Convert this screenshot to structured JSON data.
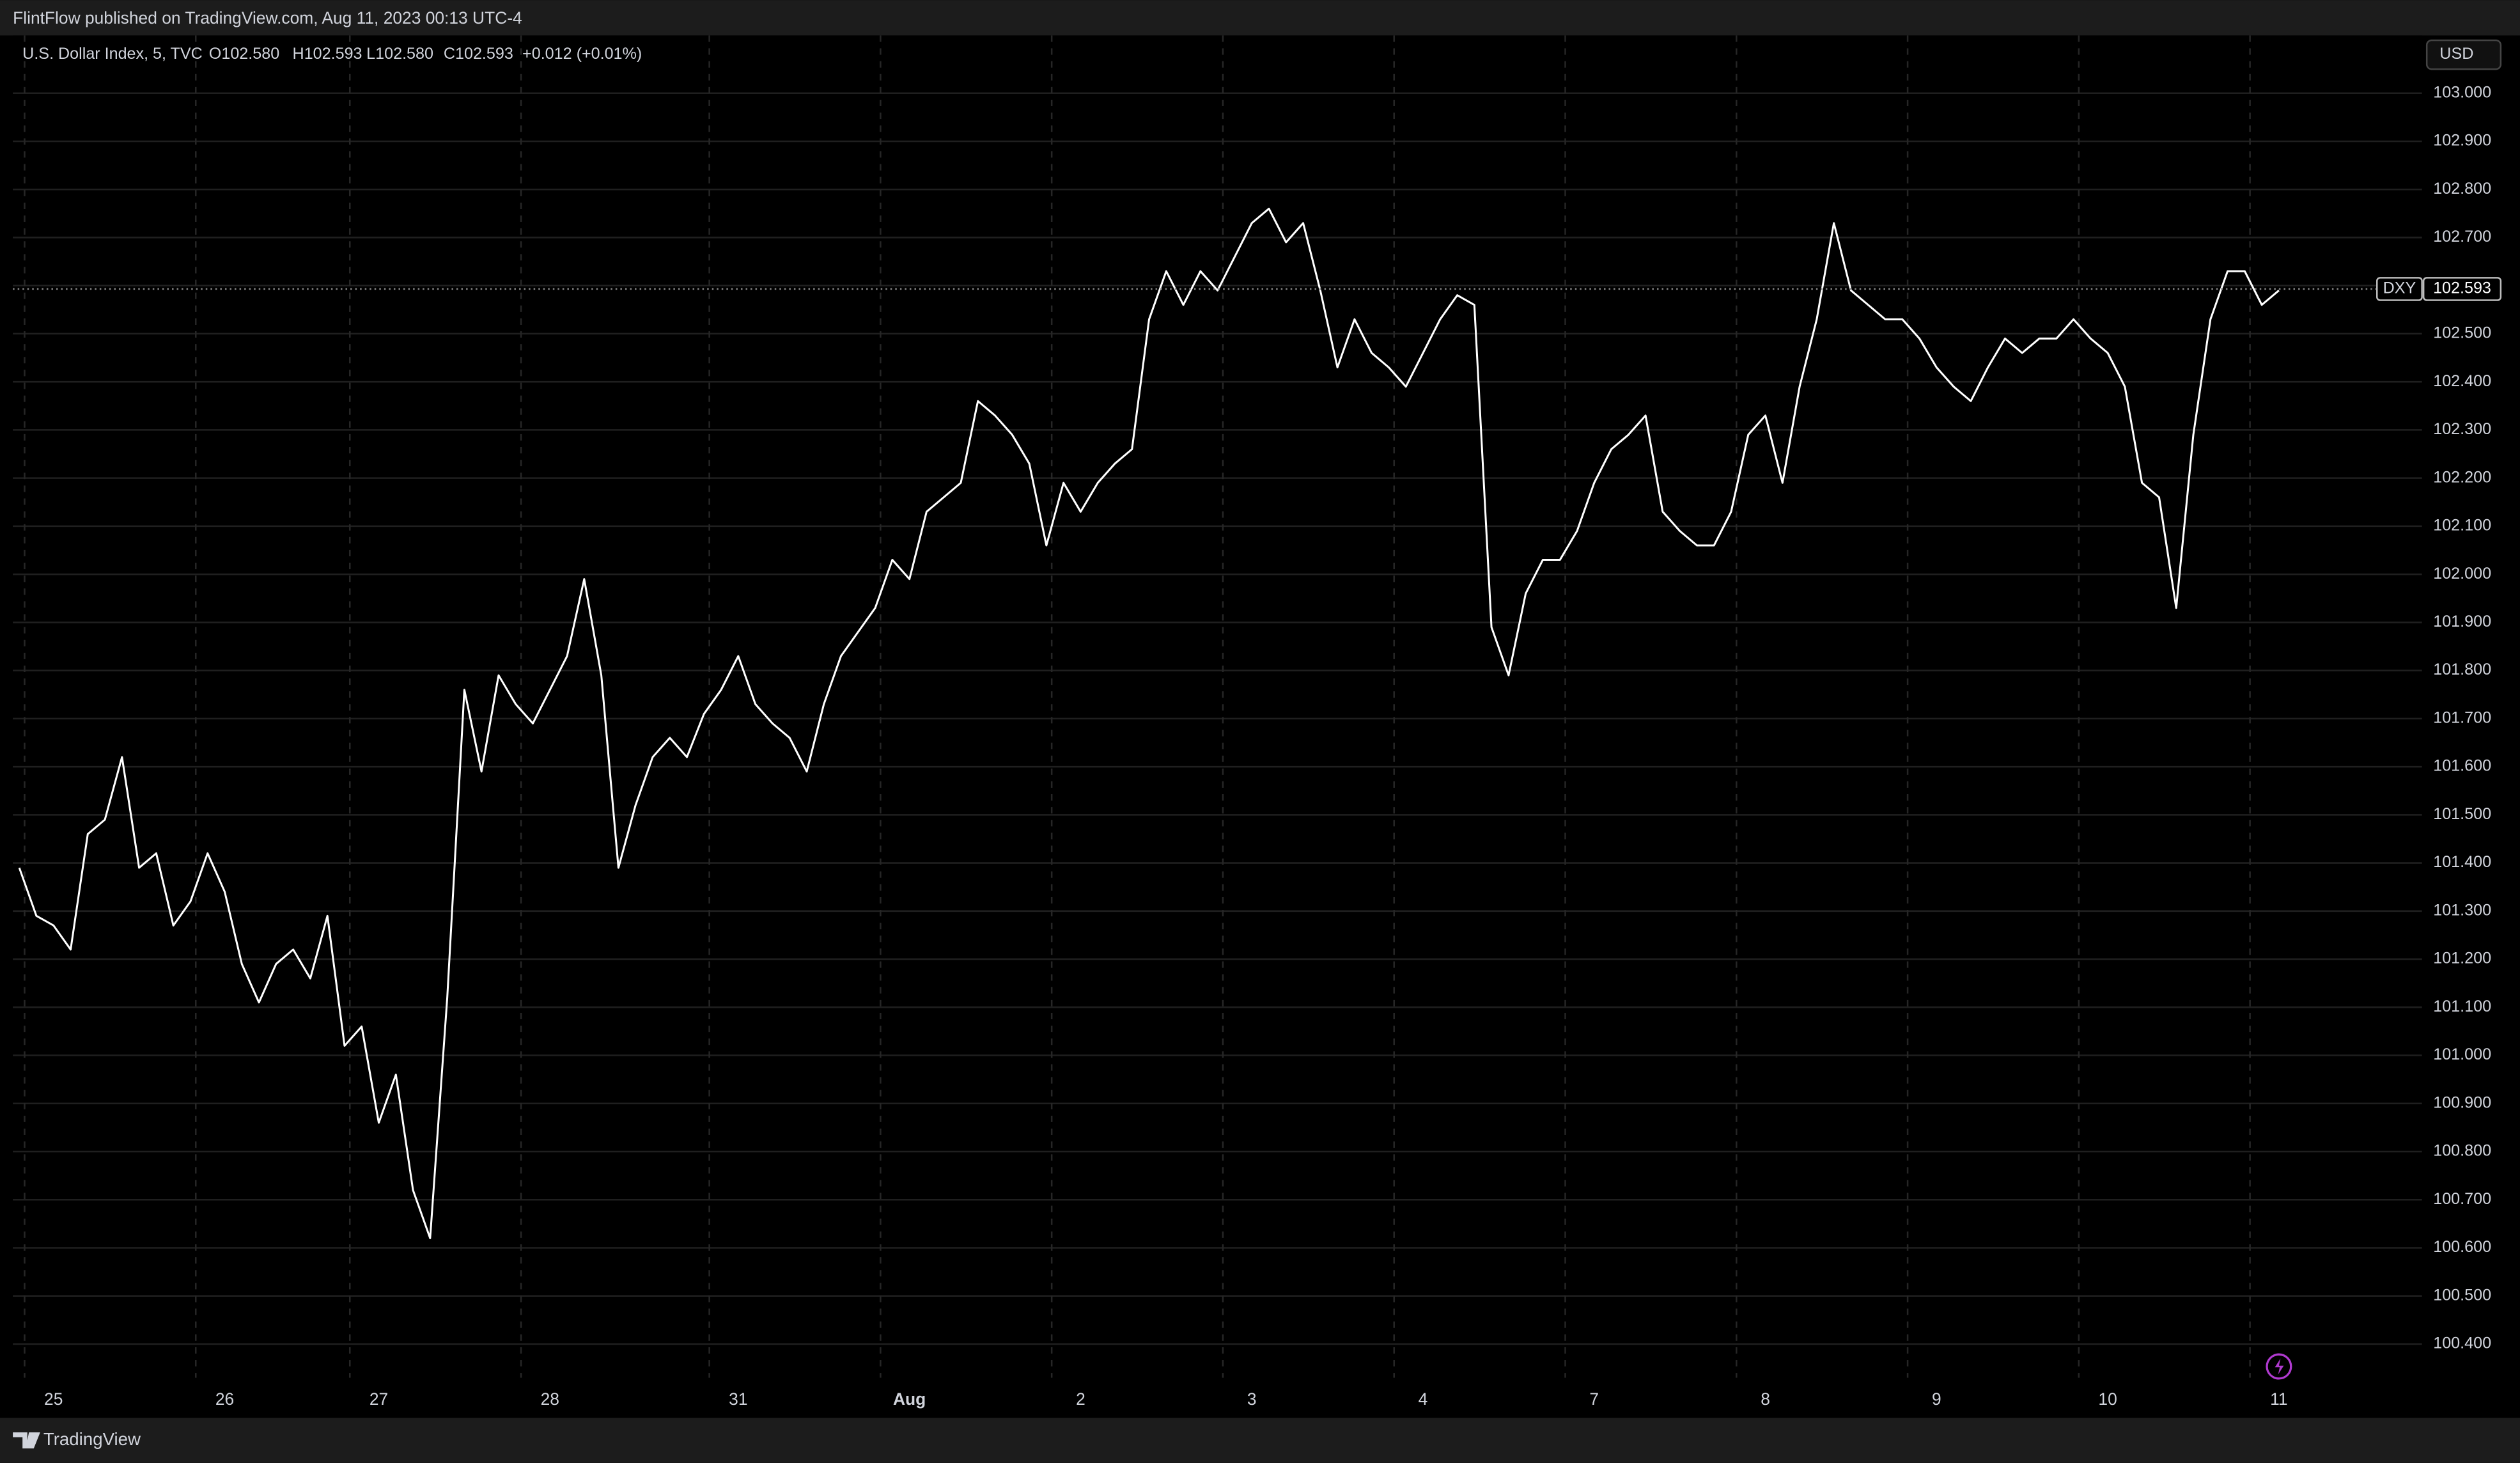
{
  "header": {
    "published": "FlintFlow published on TradingView.com, Aug 11, 2023 00:13 UTC-4",
    "currency": "USD"
  },
  "footer": {
    "brand": "TradingView"
  },
  "chart_data": {
    "type": "line",
    "symbol": "U.S. Dollar Index, 5, TVC",
    "ohlc": [
      "O102.580",
      "H102.593",
      "L102.580",
      "C102.593"
    ],
    "change": "+0.012 (+0.01%)",
    "last_price": {
      "name": "DXY",
      "value": 102.593
    },
    "grid": true,
    "background": "#000000",
    "categories": [
      null,
      null,
      "25",
      null,
      null,
      null,
      null,
      null,
      null,
      null,
      null,
      null,
      "26",
      null,
      null,
      null,
      null,
      null,
      null,
      null,
      null,
      "27",
      null,
      null,
      null,
      null,
      null,
      null,
      null,
      null,
      null,
      "28",
      null,
      null,
      null,
      null,
      null,
      null,
      null,
      null,
      null,
      null,
      "31",
      null,
      null,
      null,
      null,
      null,
      null,
      null,
      null,
      null,
      "Aug",
      null,
      null,
      null,
      null,
      null,
      null,
      null,
      null,
      null,
      "2",
      null,
      null,
      null,
      null,
      null,
      null,
      null,
      null,
      null,
      "3",
      null,
      null,
      null,
      null,
      null,
      null,
      null,
      null,
      null,
      "4",
      null,
      null,
      null,
      null,
      null,
      null,
      null,
      null,
      null,
      "7",
      null,
      null,
      null,
      null,
      null,
      null,
      null,
      null,
      null,
      "8",
      null,
      null,
      null,
      null,
      null,
      null,
      null,
      null,
      null,
      "9",
      null,
      null,
      null,
      null,
      null,
      null,
      null,
      null,
      null,
      "10",
      null,
      null,
      null,
      null,
      null,
      null,
      null,
      null,
      null,
      "11"
    ],
    "series": [
      {
        "name": "DXY",
        "color": "#ffffff",
        "values": [
          101.39,
          101.29,
          101.27,
          101.22,
          101.46,
          101.49,
          101.62,
          101.39,
          101.42,
          101.27,
          101.32,
          101.42,
          101.34,
          101.19,
          101.11,
          101.19,
          101.22,
          101.16,
          101.29,
          101.02,
          101.06,
          100.86,
          100.96,
          100.72,
          100.62,
          101.12,
          101.76,
          101.59,
          101.79,
          101.73,
          101.69,
          101.76,
          101.83,
          101.99,
          101.79,
          101.39,
          101.52,
          101.62,
          101.66,
          101.62,
          101.71,
          101.76,
          101.83,
          101.73,
          101.69,
          101.66,
          101.59,
          101.73,
          101.83,
          101.88,
          101.93,
          102.03,
          101.99,
          102.13,
          102.16,
          102.19,
          102.36,
          102.33,
          102.29,
          102.23,
          102.06,
          102.19,
          102.13,
          102.19,
          102.23,
          102.26,
          102.53,
          102.63,
          102.56,
          102.63,
          102.59,
          102.66,
          102.73,
          102.76,
          102.69,
          102.73,
          102.59,
          102.43,
          102.53,
          102.46,
          102.43,
          102.39,
          102.46,
          102.53,
          102.58,
          102.56,
          101.89,
          101.79,
          101.96,
          102.03,
          102.03,
          102.09,
          102.19,
          102.26,
          102.29,
          102.33,
          102.13,
          102.09,
          102.06,
          102.06,
          102.13,
          102.29,
          102.33,
          102.19,
          102.39,
          102.53,
          102.73,
          102.59,
          102.56,
          102.53,
          102.53,
          102.49,
          102.43,
          102.39,
          102.36,
          102.43,
          102.49,
          102.46,
          102.49,
          102.49,
          102.53,
          102.49,
          102.46,
          102.39,
          102.19,
          102.16,
          101.93,
          102.29,
          102.53,
          102.63,
          102.63,
          102.56,
          102.59
        ]
      }
    ],
    "ylim": [
      100.33,
      103.12
    ],
    "yticks": [
      {
        "value": 103,
        "label": "103.000"
      },
      {
        "value": 102.9,
        "label": "102.900"
      },
      {
        "value": 102.8,
        "label": "102.800"
      },
      {
        "value": 102.7,
        "label": "102.700"
      },
      {
        "value": 102.6,
        "label": "102.600"
      },
      {
        "value": 102.5,
        "label": "102.500"
      },
      {
        "value": 102.4,
        "label": "102.400"
      },
      {
        "value": 102.3,
        "label": "102.300"
      },
      {
        "value": 102.2,
        "label": "102.200"
      },
      {
        "value": 102.1,
        "label": "102.100"
      },
      {
        "value": 102,
        "label": "102.000"
      },
      {
        "value": 101.9,
        "label": "101.900"
      },
      {
        "value": 101.8,
        "label": "101.800"
      },
      {
        "value": 101.7,
        "label": "101.700"
      },
      {
        "value": 101.6,
        "label": "101.600"
      },
      {
        "value": 101.5,
        "label": "101.500"
      },
      {
        "value": 101.4,
        "label": "101.400"
      },
      {
        "value": 101.3,
        "label": "101.300"
      },
      {
        "value": 101.2,
        "label": "101.200"
      },
      {
        "value": 101.1,
        "label": "101.100"
      },
      {
        "value": 101,
        "label": "101.000"
      },
      {
        "value": 100.9,
        "label": "100.900"
      },
      {
        "value": 100.8,
        "label": "100.800"
      },
      {
        "value": 100.7,
        "label": "100.700"
      },
      {
        "value": 100.6,
        "label": "100.600"
      },
      {
        "value": 100.5,
        "label": "100.500"
      },
      {
        "value": 100.4,
        "label": "100.400"
      }
    ]
  }
}
